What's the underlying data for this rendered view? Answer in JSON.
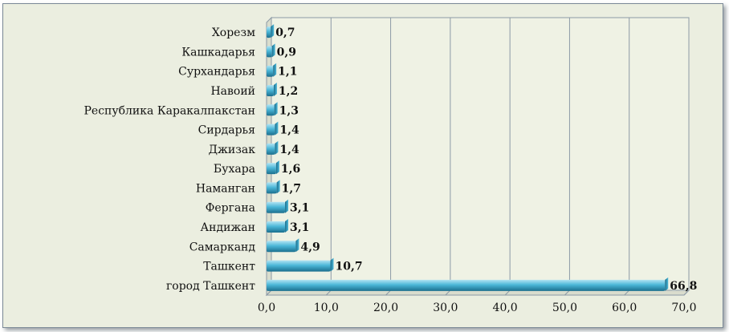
{
  "chart_data": {
    "type": "bar",
    "orientation": "horizontal",
    "categories": [
      "Хорезм",
      "Кашкадарья",
      "Сурхандарья",
      "Навоий",
      "Республика Каракалпакстан",
      "Сирдарья",
      "Джизак",
      "Бухара",
      "Наманган",
      "Фергана",
      "Андижан",
      "Самарканд",
      "Ташкент",
      "город Ташкент"
    ],
    "values": [
      0.7,
      0.9,
      1.1,
      1.2,
      1.3,
      1.4,
      1.4,
      1.6,
      1.7,
      3.1,
      3.1,
      4.9,
      10.7,
      66.8
    ],
    "value_labels": [
      "0,7",
      "0,9",
      "1,1",
      "1,2",
      "1,3",
      "1,4",
      "1,4",
      "1,6",
      "1,7",
      "3,1",
      "3,1",
      "4,9",
      "10,7",
      "66,8"
    ],
    "xlim": [
      0,
      70
    ],
    "x_ticks": [
      "0,0",
      "10,0",
      "20,0",
      "30,0",
      "40,0",
      "50,0",
      "60,0",
      "70,0"
    ],
    "grid": true,
    "bar_style": "3d-cylinder",
    "title": "",
    "xlabel": "",
    "ylabel": "",
    "colors": {
      "bar_light": "#b3e4f3",
      "bar_mid": "#4bb7d8",
      "bar_dark": "#1b6f8e",
      "plot_background": "#eff2e4",
      "grid": "#8c9aa6",
      "frame_background": "#ebeee0"
    }
  }
}
